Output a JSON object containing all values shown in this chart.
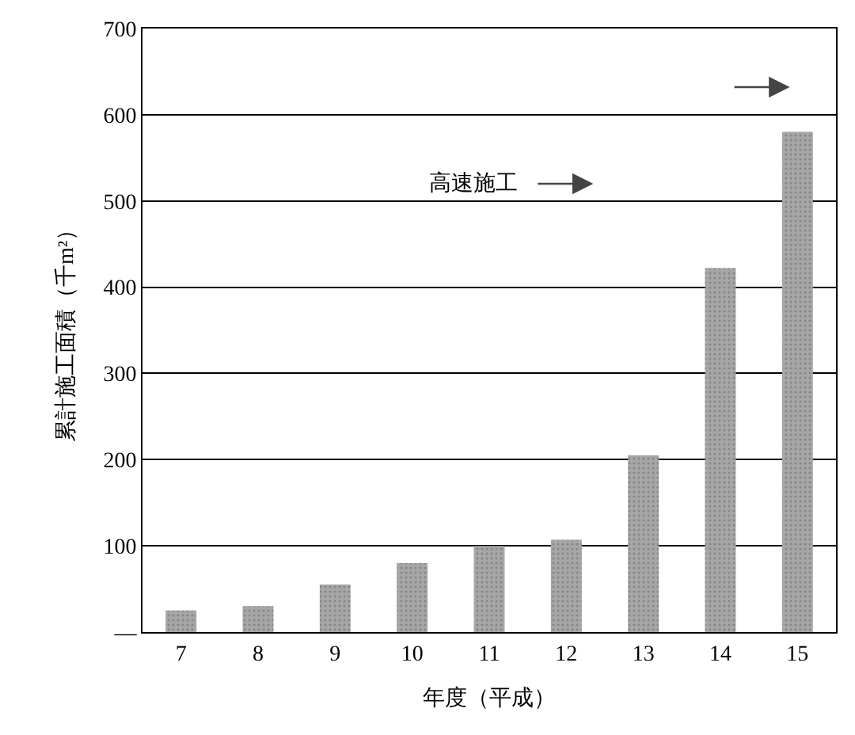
{
  "chart_data": {
    "type": "bar",
    "xlabel": "年度（平成）",
    "ylabel": "累計施工面積（千m²）",
    "categories": [
      "7",
      "8",
      "9",
      "10",
      "11",
      "12",
      "13",
      "14",
      "15"
    ],
    "values": [
      25,
      30,
      55,
      80,
      100,
      107,
      205,
      422,
      580
    ],
    "color": "#a6a6a6",
    "ylim": [
      0,
      700
    ],
    "yticks": [
      {
        "value": 0,
        "label": "—"
      },
      100,
      200,
      300,
      400,
      500,
      600,
      700
    ],
    "grid": "y",
    "annotations": [
      "高速施工"
    ]
  }
}
